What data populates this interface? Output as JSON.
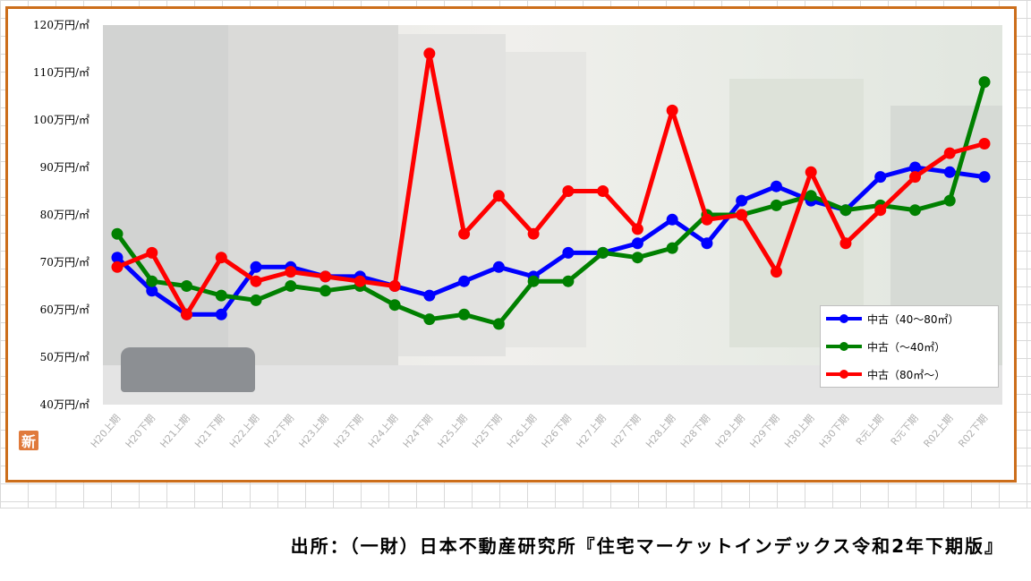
{
  "chart_data": {
    "type": "line",
    "categories": [
      "H20上期",
      "H20下期",
      "H21上期",
      "H21下期",
      "H22上期",
      "H22下期",
      "H23上期",
      "H23下期",
      "H24上期",
      "H24下期",
      "H25上期",
      "H25下期",
      "H26上期",
      "H26下期",
      "H27上期",
      "H27下期",
      "H28上期",
      "H28下期",
      "H29上期",
      "H29下期",
      "H30上期",
      "H30下期",
      "R元上期",
      "R元下期",
      "R02上期",
      "R02下期"
    ],
    "y_tick_labels": [
      "40万円/㎡",
      "50万円/㎡",
      "60万円/㎡",
      "70万円/㎡",
      "80万円/㎡",
      "90万円/㎡",
      "100万円/㎡",
      "110万円/㎡",
      "120万円/㎡"
    ],
    "ylim": [
      40,
      120
    ],
    "series": [
      {
        "name": "中古（40～80㎡）",
        "color": "#0000ff",
        "values": [
          71,
          64,
          59,
          59,
          69,
          69,
          67,
          67,
          65,
          63,
          66,
          69,
          67,
          72,
          72,
          74,
          79,
          74,
          83,
          86,
          83,
          81,
          88,
          90,
          89,
          88
        ]
      },
      {
        "name": "中古（～40㎡）",
        "color": "#008000",
        "values": [
          76,
          66,
          65,
          63,
          62,
          65,
          64,
          65,
          61,
          58,
          59,
          57,
          66,
          66,
          72,
          71,
          73,
          80,
          80,
          82,
          84,
          81,
          82,
          81,
          83,
          108
        ]
      },
      {
        "name": "中古（80㎡～）",
        "color": "#ff0000",
        "values": [
          69,
          72,
          59,
          71,
          66,
          68,
          67,
          66,
          65,
          114,
          76,
          84,
          76,
          85,
          85,
          77,
          102,
          79,
          80,
          68,
          89,
          74,
          81,
          88,
          93,
          95
        ]
      }
    ],
    "legend_position": "lower-right",
    "grid": false
  },
  "badge": {
    "text": "新"
  },
  "source": {
    "text": "出所：（一財）日本不動産研究所『住宅マーケットインデックス令和2年下期版』"
  }
}
